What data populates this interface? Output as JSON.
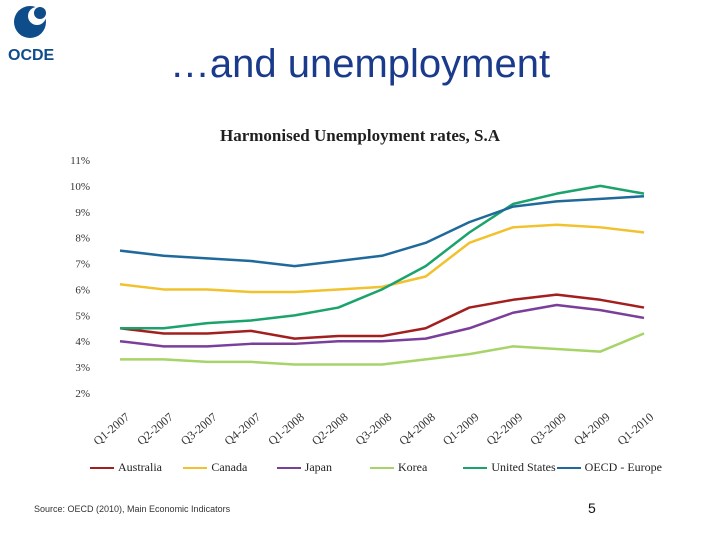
{
  "slide": {
    "title": "…and unemployment",
    "source": "Source: OECD (2010), Main Economic Indicators",
    "page_number": "5"
  },
  "logo": {
    "text": "OCDE",
    "color": "#0f4c8a"
  },
  "chart_data": {
    "type": "line",
    "title": "Harmonised Unemployment rates, S.A",
    "xlabel": "",
    "ylabel": "",
    "ylim": [
      2,
      11
    ],
    "y_ticks": [
      "11%",
      "10%",
      "9%",
      "8%",
      "7%",
      "6%",
      "5%",
      "4%",
      "3%",
      "2%"
    ],
    "categories": [
      "Q1-2007",
      "Q2-2007",
      "Q3-2007",
      "Q4-2007",
      "Q1-2008",
      "Q2-2008",
      "Q3-2008",
      "Q4-2008",
      "Q1-2009",
      "Q2-2009",
      "Q3-2009",
      "Q4-2009",
      "Q1-2010"
    ],
    "grid": false,
    "legend_position": "bottom",
    "series": [
      {
        "name": "Australia",
        "color": "#a31f1f",
        "values": [
          4.5,
          4.3,
          4.3,
          4.4,
          4.1,
          4.2,
          4.2,
          4.5,
          5.3,
          5.6,
          5.8,
          5.6,
          5.3
        ]
      },
      {
        "name": "Canada",
        "color": "#f2c12e",
        "values": [
          6.2,
          6.0,
          6.0,
          5.9,
          5.9,
          6.0,
          6.1,
          6.5,
          7.8,
          8.4,
          8.5,
          8.4,
          8.2
        ]
      },
      {
        "name": "Japan",
        "color": "#7a3f9a",
        "values": [
          4.0,
          3.8,
          3.8,
          3.9,
          3.9,
          4.0,
          4.0,
          4.1,
          4.5,
          5.1,
          5.4,
          5.2,
          4.9
        ]
      },
      {
        "name": "Korea",
        "color": "#a6d468",
        "values": [
          3.3,
          3.3,
          3.2,
          3.2,
          3.1,
          3.1,
          3.1,
          3.3,
          3.5,
          3.8,
          3.7,
          3.6,
          4.3
        ]
      },
      {
        "name": "United States",
        "color": "#1aa36b",
        "values": [
          4.5,
          4.5,
          4.7,
          4.8,
          5.0,
          5.3,
          6.0,
          6.9,
          8.2,
          9.3,
          9.7,
          10.0,
          9.7
        ]
      },
      {
        "name": "OECD - Europe",
        "color": "#1f6a9a",
        "values": [
          7.5,
          7.3,
          7.2,
          7.1,
          6.9,
          7.1,
          7.3,
          7.8,
          8.6,
          9.2,
          9.4,
          9.5,
          9.6
        ]
      }
    ]
  }
}
